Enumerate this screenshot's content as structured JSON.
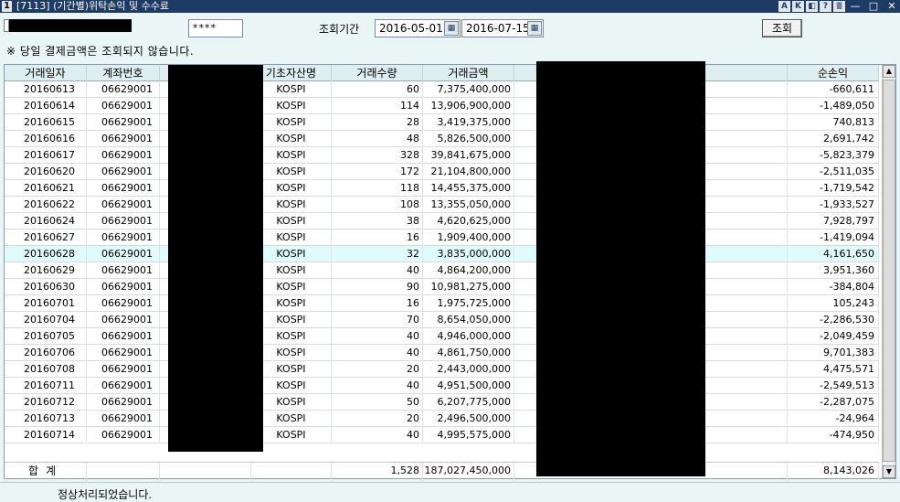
{
  "window": {
    "screen_number": "1",
    "title": "[7113] (기간별)위탁손익 및 수수료",
    "title_icons": [
      "A",
      "K",
      "◧",
      "?",
      "≣"
    ],
    "window_controls": [
      "—",
      "□",
      "✕"
    ]
  },
  "toolbar": {
    "password_mask": "****",
    "period_label": "조회기간",
    "start_date": "2016-05-01",
    "end_date": "2016-07-15",
    "calendar_icon": "calendar-icon",
    "search_label": "조회"
  },
  "notice": "※ 당일 결제금액은 조회되지 않습니다.",
  "grid": {
    "headers": {
      "date": "거래일자",
      "account": "계좌번호",
      "underlying": "기초자산명",
      "qty": "거래수량",
      "amount": "거래금액",
      "pnl": "순손익"
    },
    "rows": [
      {
        "date": "20160613",
        "account": "06629001",
        "underlying": "KOSPI",
        "qty": "60",
        "amount": "7,375,400,000",
        "pnl": "-660,611"
      },
      {
        "date": "20160614",
        "account": "06629001",
        "underlying": "KOSPI",
        "qty": "114",
        "amount": "13,906,900,000",
        "pnl": "-1,489,050"
      },
      {
        "date": "20160615",
        "account": "06629001",
        "underlying": "KOSPI",
        "qty": "28",
        "amount": "3,419,375,000",
        "pnl": "740,813"
      },
      {
        "date": "20160616",
        "account": "06629001",
        "underlying": "KOSPI",
        "qty": "48",
        "amount": "5,826,500,000",
        "pnl": "2,691,742"
      },
      {
        "date": "20160617",
        "account": "06629001",
        "underlying": "KOSPI",
        "qty": "328",
        "amount": "39,841,675,000",
        "pnl": "-5,823,379"
      },
      {
        "date": "20160620",
        "account": "06629001",
        "underlying": "KOSPI",
        "qty": "172",
        "amount": "21,104,800,000",
        "pnl": "-2,511,035"
      },
      {
        "date": "20160621",
        "account": "06629001",
        "underlying": "KOSPI",
        "qty": "118",
        "amount": "14,455,375,000",
        "pnl": "-1,719,542"
      },
      {
        "date": "20160622",
        "account": "06629001",
        "underlying": "KOSPI",
        "qty": "108",
        "amount": "13,355,050,000",
        "pnl": "-1,933,527"
      },
      {
        "date": "20160624",
        "account": "06629001",
        "underlying": "KOSPI",
        "qty": "38",
        "amount": "4,620,625,000",
        "pnl": "7,928,797"
      },
      {
        "date": "20160627",
        "account": "06629001",
        "underlying": "KOSPI",
        "qty": "16",
        "amount": "1,909,400,000",
        "pnl": "-1,419,094"
      },
      {
        "date": "20160628",
        "account": "06629001",
        "underlying": "KOSPI",
        "qty": "32",
        "amount": "3,835,000,000",
        "pnl": "4,161,650"
      },
      {
        "date": "20160629",
        "account": "06629001",
        "underlying": "KOSPI",
        "qty": "40",
        "amount": "4,864,200,000",
        "pnl": "3,951,360"
      },
      {
        "date": "20160630",
        "account": "06629001",
        "underlying": "KOSPI",
        "qty": "90",
        "amount": "10,981,275,000",
        "pnl": "-384,804"
      },
      {
        "date": "20160701",
        "account": "06629001",
        "underlying": "KOSPI",
        "qty": "16",
        "amount": "1,975,725,000",
        "pnl": "105,243"
      },
      {
        "date": "20160704",
        "account": "06629001",
        "underlying": "KOSPI",
        "qty": "70",
        "amount": "8,654,050,000",
        "pnl": "-2,286,530"
      },
      {
        "date": "20160705",
        "account": "06629001",
        "underlying": "KOSPI",
        "qty": "40",
        "amount": "4,946,000,000",
        "pnl": "-2,049,459"
      },
      {
        "date": "20160706",
        "account": "06629001",
        "underlying": "KOSPI",
        "qty": "40",
        "amount": "4,861,750,000",
        "pnl": "9,701,383"
      },
      {
        "date": "20160708",
        "account": "06629001",
        "underlying": "KOSPI",
        "qty": "20",
        "amount": "2,443,000,000",
        "pnl": "4,475,571"
      },
      {
        "date": "20160711",
        "account": "06629001",
        "underlying": "KOSPI",
        "qty": "40",
        "amount": "4,951,500,000",
        "pnl": "-2,549,513"
      },
      {
        "date": "20160712",
        "account": "06629001",
        "underlying": "KOSPI",
        "qty": "50",
        "amount": "6,207,775,000",
        "pnl": "-2,287,075"
      },
      {
        "date": "20160713",
        "account": "06629001",
        "underlying": "KOSPI",
        "qty": "20",
        "amount": "2,496,500,000",
        "pnl": "-24,964"
      },
      {
        "date": "20160714",
        "account": "06629001",
        "underlying": "KOSPI",
        "qty": "40",
        "amount": "4,995,575,000",
        "pnl": "-474,950"
      }
    ],
    "selected_row_index": 10,
    "total": {
      "label": "합계",
      "qty": "1,528",
      "amount": "187,027,450,000",
      "pnl": "8,143,026"
    }
  },
  "status": "정상처리되었습니다.",
  "colors": {
    "titlebar": "#1e3b63",
    "background": "#eaf6f6",
    "header": "#dfeef0",
    "selected_row": "#e0fbfd"
  }
}
